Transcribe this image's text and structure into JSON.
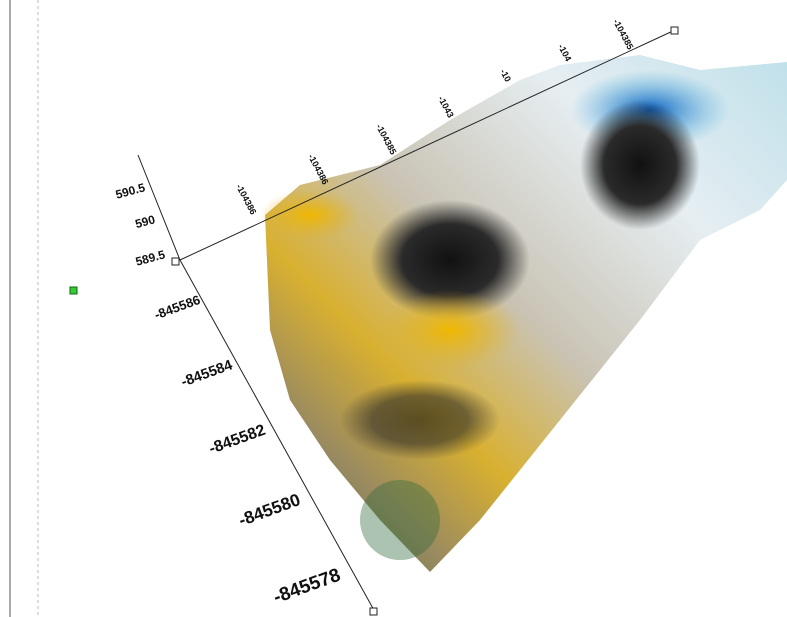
{
  "view": {
    "z_axis": {
      "ticks": [
        "590.5",
        "590",
        "589.5"
      ]
    },
    "y_axis": {
      "ticks": [
        "-845586",
        "-845584",
        "-845582",
        "-845580",
        "-845578"
      ]
    },
    "x_axis": {
      "ticks": [
        "-104386",
        "-104386",
        "-104385",
        "-1043",
        "-10",
        "-104",
        "-104385"
      ]
    }
  }
}
